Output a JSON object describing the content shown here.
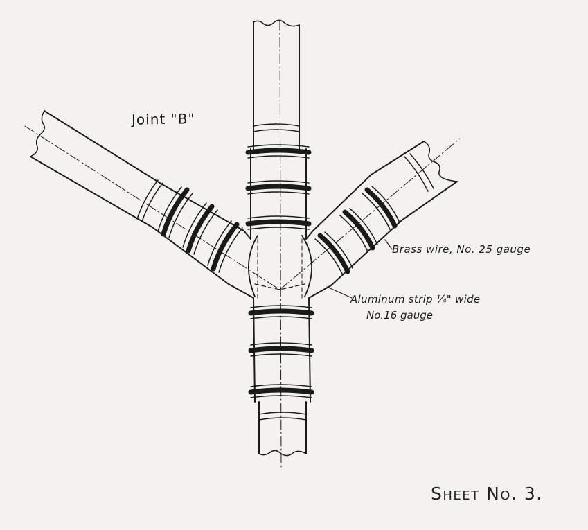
{
  "drawing": {
    "title": "Joint \"B\"",
    "callouts": {
      "brass_wire": "Brass wire, No. 25 gauge",
      "aluminum_line1": "Aluminum strip ¼\" wide",
      "aluminum_line2": "No.16 gauge"
    },
    "sheet_number": "Sheet No. 3."
  },
  "colors": {
    "paper": "#f3f2ee",
    "ink": "#1a1a1a"
  }
}
